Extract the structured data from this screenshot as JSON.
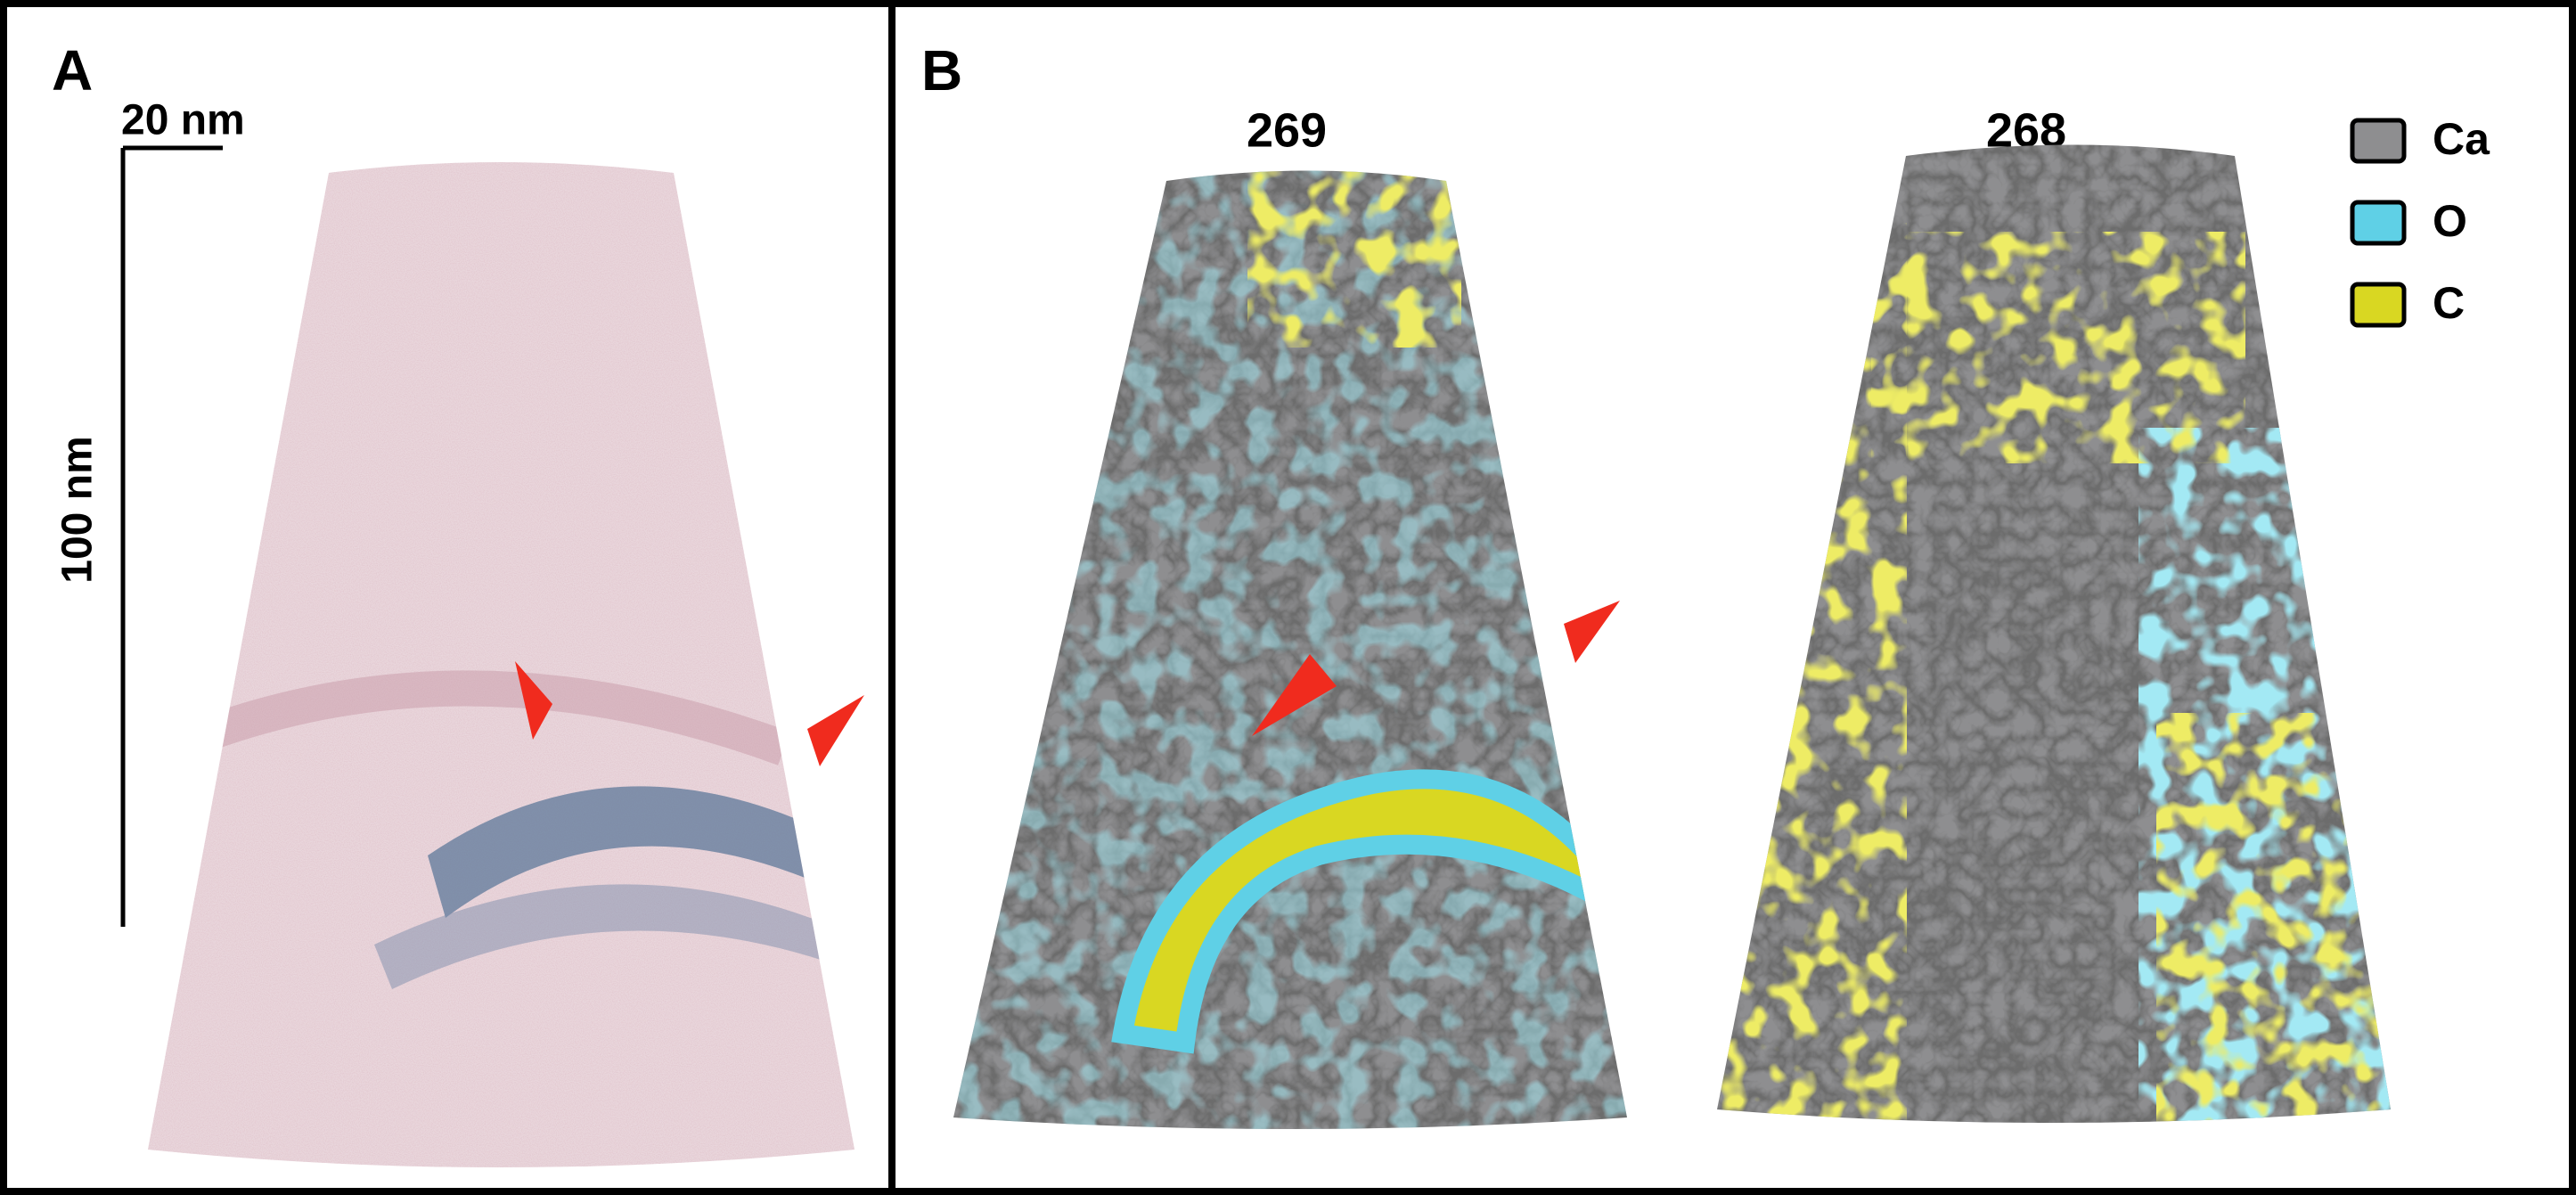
{
  "panels": [
    {
      "label": "A",
      "scale_bars": [
        "20 nm",
        "100 nm"
      ]
    },
    {
      "label": "B",
      "tips": [
        "269",
        "268"
      ],
      "legend": [
        {
          "name": "Ca",
          "color": "#8e8e90"
        },
        {
          "name": "O",
          "color": "#5fd0e6"
        },
        {
          "name": "C",
          "color": "#d9d722"
        }
      ]
    }
  ]
}
